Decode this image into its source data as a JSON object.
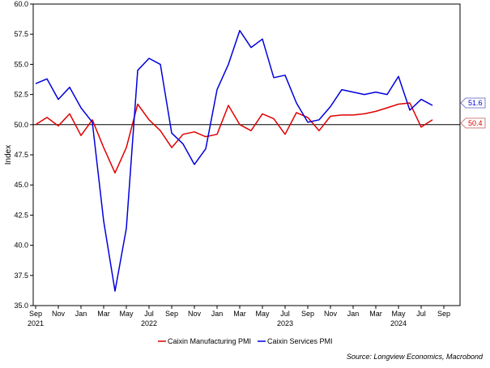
{
  "chart_data": {
    "type": "line",
    "title": "",
    "xlabel": "",
    "ylabel": "Index",
    "ylim": [
      35.0,
      60.0
    ],
    "yticks": [
      "35.0",
      "37.5",
      "40.0",
      "42.5",
      "45.0",
      "47.5",
      "50.0",
      "52.5",
      "55.0",
      "57.5",
      "60.0"
    ],
    "xtick_months": [
      "Sep",
      "Nov",
      "Jan",
      "Mar",
      "May",
      "Jul",
      "Sep",
      "Nov",
      "Jan",
      "Mar",
      "May",
      "Jul",
      "Sep",
      "Nov",
      "Jan",
      "Mar",
      "May",
      "Jul",
      "Sep"
    ],
    "xtick_years": [
      "2021",
      "2022",
      "2023",
      "2024"
    ],
    "x": [
      "2021-09",
      "2021-10",
      "2021-11",
      "2021-12",
      "2022-01",
      "2022-02",
      "2022-03",
      "2022-04",
      "2022-05",
      "2022-06",
      "2022-07",
      "2022-08",
      "2022-09",
      "2022-10",
      "2022-11",
      "2022-12",
      "2023-01",
      "2023-02",
      "2023-03",
      "2023-04",
      "2023-05",
      "2023-06",
      "2023-07",
      "2023-08",
      "2023-09",
      "2023-10",
      "2023-11",
      "2023-12",
      "2024-01",
      "2024-02",
      "2024-03",
      "2024-04",
      "2024-05",
      "2024-06",
      "2024-07",
      "2024-08"
    ],
    "reference_line": 50.0,
    "grid": false,
    "legend_position": "bottom",
    "series": [
      {
        "name": "Caixin Manufacturing PMI",
        "color": "#e00000",
        "values": [
          50.0,
          50.6,
          49.9,
          50.9,
          49.1,
          50.4,
          48.1,
          46.0,
          48.1,
          51.7,
          50.4,
          49.5,
          48.1,
          49.2,
          49.4,
          49.0,
          49.2,
          51.6,
          50.0,
          49.5,
          50.9,
          50.5,
          49.2,
          51.0,
          50.6,
          49.5,
          50.7,
          50.8,
          50.8,
          50.9,
          51.1,
          51.4,
          51.7,
          51.8,
          49.8,
          50.4
        ],
        "end_label": "50.4"
      },
      {
        "name": "Caixin Services PMI",
        "color": "#0000dd",
        "values": [
          53.4,
          53.8,
          52.1,
          53.1,
          51.4,
          50.2,
          42.0,
          36.2,
          41.4,
          54.5,
          55.5,
          55.0,
          49.3,
          48.4,
          46.7,
          48.0,
          52.9,
          55.0,
          57.8,
          56.4,
          57.1,
          53.9,
          54.1,
          51.8,
          50.2,
          50.4,
          51.5,
          52.9,
          52.7,
          52.5,
          52.7,
          52.5,
          54.0,
          51.2,
          52.1,
          51.6
        ],
        "end_label": "51.6"
      }
    ],
    "source": "Source: Longview Economics, Macrobond"
  }
}
